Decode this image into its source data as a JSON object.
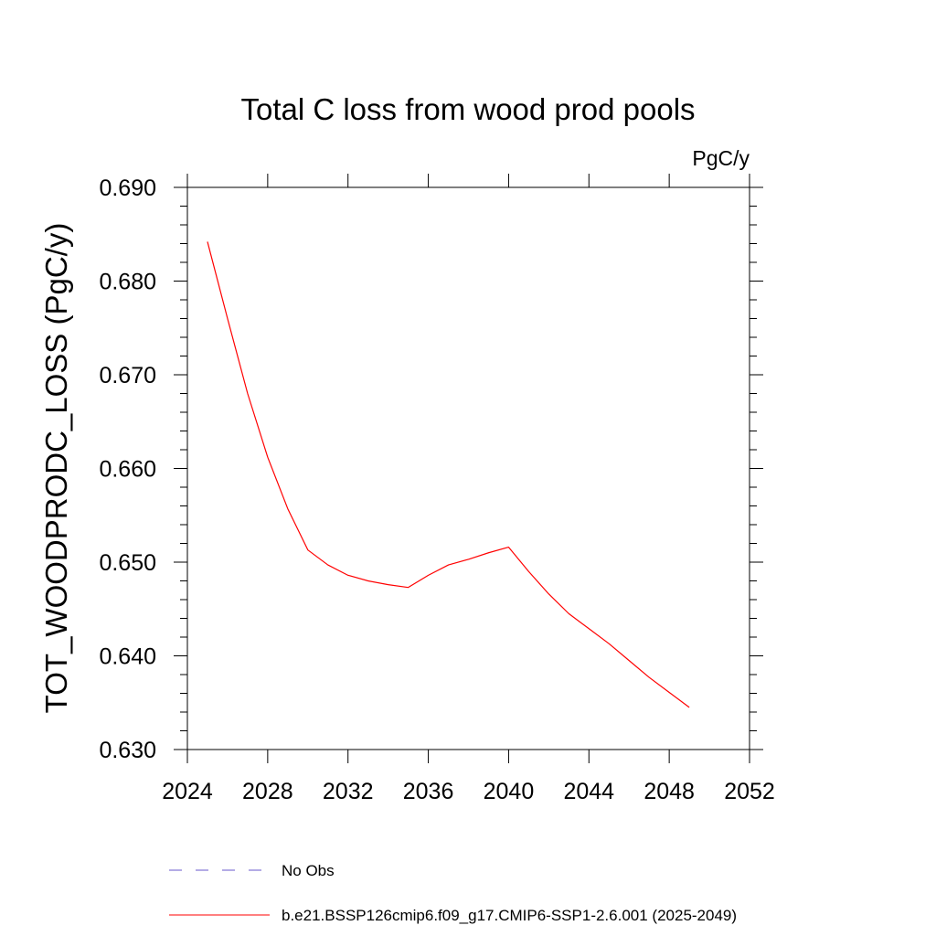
{
  "chart_data": {
    "type": "line",
    "title": "Total C loss from wood prod pools",
    "units_label": "PgC/y",
    "ylabel": "TOT_WOODPRODC_LOSS  (PgC/y)",
    "xlabel": "",
    "xlim": [
      2024,
      2052
    ],
    "ylim": [
      0.63,
      0.69
    ],
    "x_ticks": [
      "2024",
      "2028",
      "2032",
      "2036",
      "2040",
      "2044",
      "2048",
      "2052"
    ],
    "y_ticks": [
      "0.630",
      "0.640",
      "0.650",
      "0.660",
      "0.670",
      "0.680",
      "0.690"
    ],
    "grid": false,
    "x": [
      2025,
      2026,
      2027,
      2028,
      2029,
      2030,
      2031,
      2032,
      2033,
      2034,
      2035,
      2036,
      2037,
      2038,
      2039,
      2040,
      2041,
      2042,
      2043,
      2044,
      2045,
      2046,
      2047,
      2048,
      2049
    ],
    "series": [
      {
        "name": "b.e21.BSSP126cmip6.f09_g17.CMIP6-SSP1-2.6.001 (2025-2049)",
        "color": "#ff0000",
        "dash": "solid",
        "values": [
          0.6842,
          0.676,
          0.668,
          0.6612,
          0.6557,
          0.6513,
          0.6497,
          0.6486,
          0.648,
          0.6476,
          0.6473,
          0.6486,
          0.6497,
          0.6503,
          0.651,
          0.6516,
          0.649,
          0.6466,
          0.6445,
          0.6429,
          0.6413,
          0.6395,
          0.6377,
          0.6361,
          0.6345
        ]
      }
    ],
    "legend": {
      "placement": "bottom",
      "entries": [
        {
          "label": "No Obs",
          "color": "#6a5acd",
          "dash": "dashed"
        },
        {
          "label": "b.e21.BSSP126cmip6.f09_g17.CMIP6-SSP1-2.6.001 (2025-2049)",
          "color": "#ff0000",
          "dash": "solid"
        }
      ]
    }
  }
}
